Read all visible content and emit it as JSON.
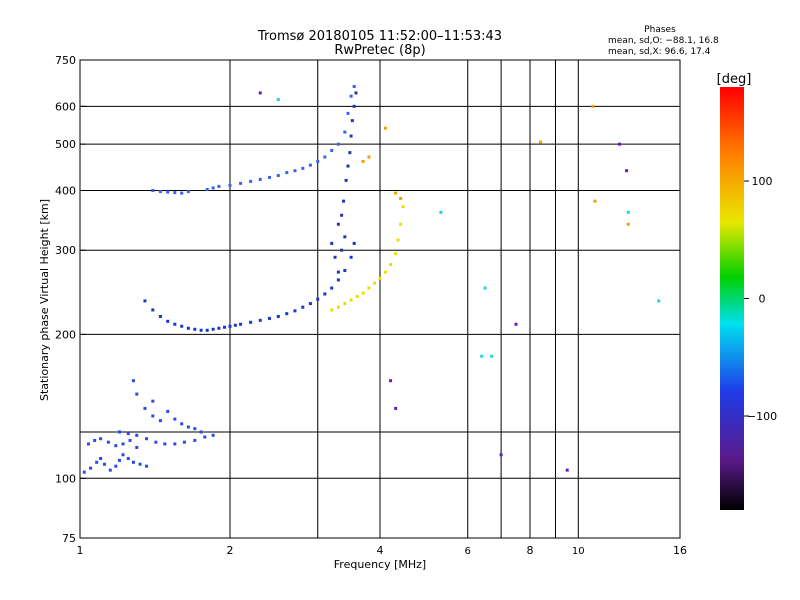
{
  "title": "Tromsø 20180105 11:52:00–11:53:43",
  "subtitle": "RwPretec (8p)",
  "stats": {
    "heading": "Phases",
    "line_o": "mean, sd,O: −88.1, 16.8",
    "line_x": "mean, sd,X:  96.6, 17.4"
  },
  "colorbar": {
    "label": "deg",
    "ticks": [
      "100",
      "0",
      "−100"
    ],
    "tick_values": [
      100,
      0,
      -100
    ],
    "range": [
      -180,
      180
    ]
  },
  "chart_data": {
    "type": "scatter",
    "title": "Tromsø 20180105 11:52:00–11:53:43",
    "subtitle": "RwPretec (8p)",
    "xlabel": "Frequency [MHz]",
    "ylabel": "Stationary phase Virtual Height [km]",
    "x_scale": "log",
    "y_scale": "log",
    "xlim": [
      1,
      16
    ],
    "ylim": [
      75,
      750
    ],
    "x_ticks": [
      1,
      2,
      4,
      8,
      16
    ],
    "x_tick_labels": [
      "1",
      "2",
      "4",
      "8",
      "16"
    ],
    "x_minor_ticks": [
      6,
      10
    ],
    "x_minor_tick_labels": [
      "6",
      "10"
    ],
    "x_grid": [
      2,
      3,
      4,
      6,
      7,
      8,
      9,
      10
    ],
    "y_ticks": [
      75,
      100,
      200,
      300,
      400,
      500,
      600,
      750
    ],
    "y_tick_labels": [
      "75",
      "100",
      "200",
      "300",
      "400",
      "500",
      "600",
      "750"
    ],
    "y_grid": [
      100,
      125,
      200,
      300,
      400,
      500,
      600
    ],
    "grid": true,
    "color_encoding": "phase (deg)",
    "series": [
      {
        "color": "#2a4be8",
        "points": [
          [
            1.02,
            103
          ],
          [
            1.05,
            105
          ],
          [
            1.08,
            108
          ],
          [
            1.1,
            110
          ],
          [
            1.12,
            107
          ],
          [
            1.15,
            104
          ],
          [
            1.18,
            106
          ],
          [
            1.2,
            109
          ],
          [
            1.22,
            112
          ],
          [
            1.25,
            110
          ],
          [
            1.28,
            108
          ],
          [
            1.32,
            107
          ],
          [
            1.36,
            106
          ],
          [
            1.04,
            118
          ],
          [
            1.07,
            120
          ],
          [
            1.1,
            121
          ],
          [
            1.14,
            119
          ],
          [
            1.18,
            117
          ],
          [
            1.22,
            118
          ],
          [
            1.26,
            120
          ],
          [
            1.3,
            116
          ],
          [
            1.2,
            125
          ],
          [
            1.25,
            124
          ],
          [
            1.3,
            123
          ],
          [
            1.36,
            121
          ],
          [
            1.42,
            119
          ],
          [
            1.48,
            118
          ],
          [
            1.55,
            118
          ],
          [
            1.62,
            119
          ],
          [
            1.7,
            120
          ],
          [
            1.78,
            122
          ],
          [
            1.85,
            123
          ],
          [
            1.3,
            150
          ],
          [
            1.35,
            140
          ],
          [
            1.4,
            135
          ],
          [
            1.45,
            132
          ],
          [
            1.5,
            138
          ],
          [
            1.55,
            133
          ],
          [
            1.6,
            130
          ],
          [
            1.65,
            128
          ],
          [
            1.7,
            127
          ],
          [
            1.75,
            125
          ],
          [
            1.28,
            160
          ],
          [
            1.4,
            145
          ]
        ]
      },
      {
        "color": "#1a35d0",
        "points": [
          [
            1.35,
            235
          ],
          [
            1.4,
            225
          ],
          [
            1.45,
            218
          ],
          [
            1.5,
            213
          ],
          [
            1.55,
            210
          ],
          [
            1.6,
            208
          ],
          [
            1.65,
            206
          ],
          [
            1.7,
            205
          ],
          [
            1.75,
            204
          ],
          [
            1.8,
            204
          ],
          [
            1.85,
            205
          ],
          [
            1.9,
            206
          ],
          [
            1.95,
            207
          ],
          [
            2.0,
            208
          ],
          [
            2.05,
            209
          ],
          [
            2.1,
            210
          ],
          [
            2.2,
            212
          ],
          [
            2.3,
            214
          ],
          [
            2.4,
            216
          ],
          [
            2.5,
            218
          ],
          [
            2.6,
            221
          ],
          [
            2.7,
            224
          ],
          [
            2.8,
            228
          ],
          [
            2.9,
            232
          ],
          [
            3.0,
            237
          ],
          [
            3.1,
            243
          ],
          [
            3.2,
            250
          ],
          [
            3.3,
            260
          ],
          [
            3.4,
            272
          ],
          [
            3.5,
            290
          ],
          [
            3.55,
            310
          ]
        ]
      },
      {
        "color": "#3a62f0",
        "points": [
          [
            1.4,
            400
          ],
          [
            1.45,
            398
          ],
          [
            1.5,
            397
          ],
          [
            1.55,
            396
          ],
          [
            1.6,
            395
          ],
          [
            1.65,
            398
          ],
          [
            1.8,
            402
          ],
          [
            1.85,
            405
          ],
          [
            1.9,
            408
          ],
          [
            2.0,
            410
          ],
          [
            2.1,
            414
          ],
          [
            2.2,
            418
          ],
          [
            2.3,
            422
          ],
          [
            2.4,
            426
          ],
          [
            2.5,
            430
          ],
          [
            2.6,
            436
          ],
          [
            2.7,
            440
          ],
          [
            2.8,
            445
          ],
          [
            2.9,
            452
          ],
          [
            3.0,
            460
          ],
          [
            3.1,
            470
          ],
          [
            3.2,
            485
          ],
          [
            3.3,
            500
          ],
          [
            3.4,
            530
          ],
          [
            3.45,
            580
          ],
          [
            3.5,
            630
          ],
          [
            3.55,
            660
          ]
        ]
      },
      {
        "color": "#2636a8",
        "points": [
          [
            3.3,
            340
          ],
          [
            3.35,
            355
          ],
          [
            3.38,
            380
          ],
          [
            3.42,
            420
          ],
          [
            3.45,
            450
          ],
          [
            3.48,
            480
          ],
          [
            3.5,
            520
          ],
          [
            3.52,
            560
          ],
          [
            3.55,
            600
          ],
          [
            3.58,
            640
          ],
          [
            3.3,
            270
          ],
          [
            3.35,
            300
          ],
          [
            3.4,
            320
          ],
          [
            3.2,
            310
          ],
          [
            3.25,
            290
          ]
        ]
      },
      {
        "color": "#e8e000",
        "points": [
          [
            3.2,
            225
          ],
          [
            3.3,
            228
          ],
          [
            3.4,
            232
          ],
          [
            3.5,
            236
          ],
          [
            3.6,
            240
          ],
          [
            3.7,
            244
          ],
          [
            3.8,
            250
          ],
          [
            3.9,
            256
          ],
          [
            4.0,
            262
          ],
          [
            4.1,
            270
          ],
          [
            4.2,
            280
          ],
          [
            4.3,
            295
          ],
          [
            4.35,
            315
          ],
          [
            4.4,
            340
          ],
          [
            4.45,
            370
          ]
        ]
      },
      {
        "color": "#f2a000",
        "points": [
          [
            3.7,
            460
          ],
          [
            3.8,
            470
          ],
          [
            4.1,
            540
          ],
          [
            4.3,
            395
          ],
          [
            4.4,
            385
          ],
          [
            8.4,
            505
          ],
          [
            10.7,
            600
          ],
          [
            10.8,
            380
          ],
          [
            12.6,
            340
          ]
        ]
      },
      {
        "color": "#1fd2e8",
        "points": [
          [
            5.3,
            360
          ],
          [
            6.4,
            180
          ],
          [
            6.5,
            250
          ],
          [
            6.7,
            180
          ],
          [
            2.5,
            620
          ],
          [
            12.6,
            360
          ],
          [
            14.5,
            235
          ]
        ]
      },
      {
        "color": "#6020c0",
        "points": [
          [
            2.3,
            640
          ],
          [
            7.0,
            112
          ],
          [
            7.5,
            210
          ],
          [
            9.5,
            104
          ],
          [
            12.5,
            440
          ],
          [
            12.1,
            500
          ],
          [
            4.2,
            160
          ],
          [
            4.3,
            140
          ]
        ]
      }
    ]
  }
}
